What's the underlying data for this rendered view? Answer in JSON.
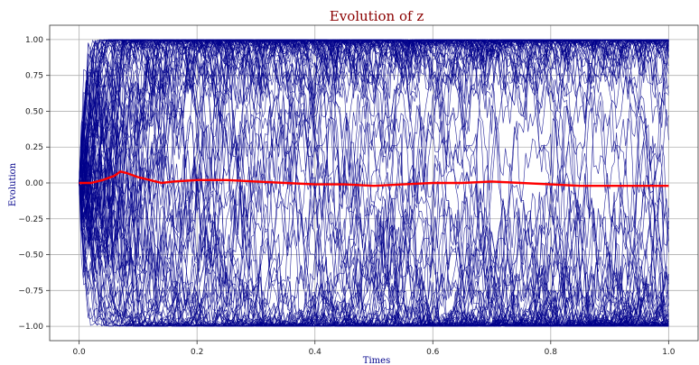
{
  "chart_data": {
    "type": "line",
    "title": "Evolution of z",
    "xlabel": "Times",
    "ylabel": "Evolution",
    "xlim": [
      -0.05,
      1.05
    ],
    "ylim": [
      -1.1,
      1.1
    ],
    "xticks": [
      0.0,
      0.2,
      0.4,
      0.6,
      0.8,
      1.0
    ],
    "xtick_labels": [
      "0.0",
      "0.2",
      "0.4",
      "0.6",
      "0.8",
      "1.0"
    ],
    "yticks": [
      -1.0,
      -0.75,
      -0.5,
      -0.25,
      0.0,
      0.25,
      0.5,
      0.75,
      1.0
    ],
    "ytick_labels": [
      "−1.00",
      "−0.75",
      "−0.50",
      "−0.25",
      "0.00",
      "0.25",
      "0.50",
      "0.75",
      "1.00"
    ],
    "grid": true,
    "series_colors": {
      "paths": "#00008b",
      "mean": "#ff0000"
    },
    "paths_description_count": 100,
    "paths_x": [
      0,
      0.05,
      0.1,
      0.15,
      0.2,
      0.25,
      0.3,
      0.35,
      0.4,
      0.45,
      0.5,
      0.55,
      0.6,
      0.65,
      0.7,
      0.75,
      0.8,
      0.85,
      0.9,
      0.95,
      1.0
    ],
    "paths_final_values_approx": [
      1.0,
      0.99,
      0.98,
      0.97,
      0.95,
      0.93,
      0.9,
      0.85,
      0.78,
      0.55,
      -0.6,
      -0.72,
      -0.8,
      -0.88,
      -0.93,
      -0.96,
      -0.98,
      -0.99,
      -1.0
    ],
    "mean_series": {
      "x": [
        0.0,
        0.02,
        0.04,
        0.06,
        0.07,
        0.08,
        0.1,
        0.12,
        0.14,
        0.16,
        0.2,
        0.25,
        0.3,
        0.35,
        0.4,
        0.45,
        0.5,
        0.55,
        0.6,
        0.65,
        0.7,
        0.75,
        0.8,
        0.85,
        0.9,
        0.95,
        1.0
      ],
      "y": [
        0.0,
        0.0,
        0.02,
        0.05,
        0.08,
        0.07,
        0.04,
        0.02,
        0.0,
        0.01,
        0.02,
        0.02,
        0.01,
        0.0,
        -0.01,
        -0.01,
        -0.02,
        -0.01,
        0.0,
        0.0,
        0.01,
        0.0,
        -0.01,
        -0.02,
        -0.02,
        -0.02,
        -0.02
      ]
    }
  }
}
